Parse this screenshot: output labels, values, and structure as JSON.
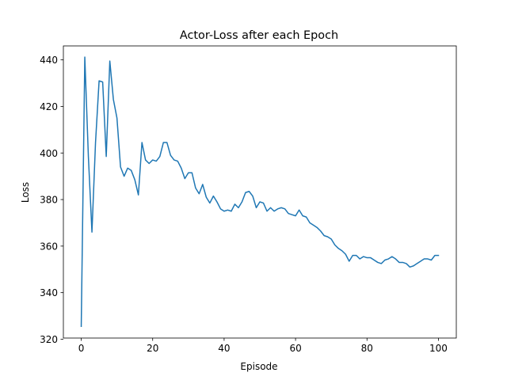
{
  "chart_data": {
    "type": "line",
    "title": "Actor-Loss after each Epoch",
    "xlabel": "Episode",
    "ylabel": "Loss",
    "xlim": [
      -5,
      105
    ],
    "ylim": [
      320.5,
      446
    ],
    "xticks": [
      0,
      20,
      40,
      60,
      80,
      100
    ],
    "yticks": [
      320,
      340,
      360,
      380,
      400,
      420,
      440
    ],
    "grid": false,
    "legend": "none",
    "color": "#1f77b4",
    "series": [
      {
        "x": [
          0,
          1,
          2,
          3,
          4,
          5,
          6,
          7,
          8,
          9,
          10,
          11,
          12,
          13,
          14,
          15,
          16,
          17,
          18,
          19,
          20,
          21,
          22,
          23,
          24,
          25,
          26,
          27,
          28,
          29,
          30,
          31,
          32,
          33,
          34,
          35,
          36,
          37,
          38,
          39,
          40,
          41,
          42,
          43,
          44,
          45,
          46,
          47,
          48,
          49,
          50,
          51,
          52,
          53,
          54,
          55,
          56,
          57,
          58,
          59,
          60,
          61,
          62,
          63,
          64,
          65,
          66,
          67,
          68,
          69,
          70,
          71,
          72,
          73,
          74,
          75,
          76,
          77,
          78,
          79,
          80,
          81,
          82,
          83,
          84,
          85,
          86,
          87,
          88,
          89,
          90,
          91,
          92,
          93,
          94,
          95,
          96,
          97,
          98,
          99,
          100
        ],
        "values": [
          325.5,
          441.2,
          398.5,
          366.0,
          404.5,
          431.0,
          430.5,
          398.5,
          439.5,
          423.0,
          415.0,
          394.0,
          390.0,
          393.5,
          392.5,
          388.5,
          382.0,
          404.5,
          397.0,
          395.5,
          397.0,
          396.5,
          398.5,
          404.5,
          404.5,
          399.0,
          397.0,
          396.5,
          393.5,
          389.0,
          391.5,
          391.5,
          385.0,
          382.5,
          386.5,
          381.0,
          378.5,
          381.5,
          379.0,
          376.0,
          375.0,
          375.5,
          375.0,
          378.0,
          376.5,
          379.0,
          383.0,
          383.5,
          381.5,
          376.5,
          379.0,
          378.5,
          375.0,
          376.5,
          375.0,
          376.0,
          376.5,
          376.0,
          374.0,
          373.5,
          373.0,
          375.5,
          373.0,
          372.5,
          370.0,
          369.0,
          368.0,
          366.5,
          364.5,
          364.0,
          363.0,
          360.5,
          359.0,
          358.0,
          356.5,
          353.5,
          356.0,
          356.0,
          354.5,
          355.5,
          355.0,
          355.0,
          354.0,
          353.0,
          352.5,
          354.0,
          354.5,
          355.5,
          354.5,
          353.0,
          353.0,
          352.5,
          351.0,
          351.5,
          352.5,
          353.5,
          354.5,
          354.5,
          354.0,
          356.0,
          356.0
        ]
      }
    ]
  }
}
